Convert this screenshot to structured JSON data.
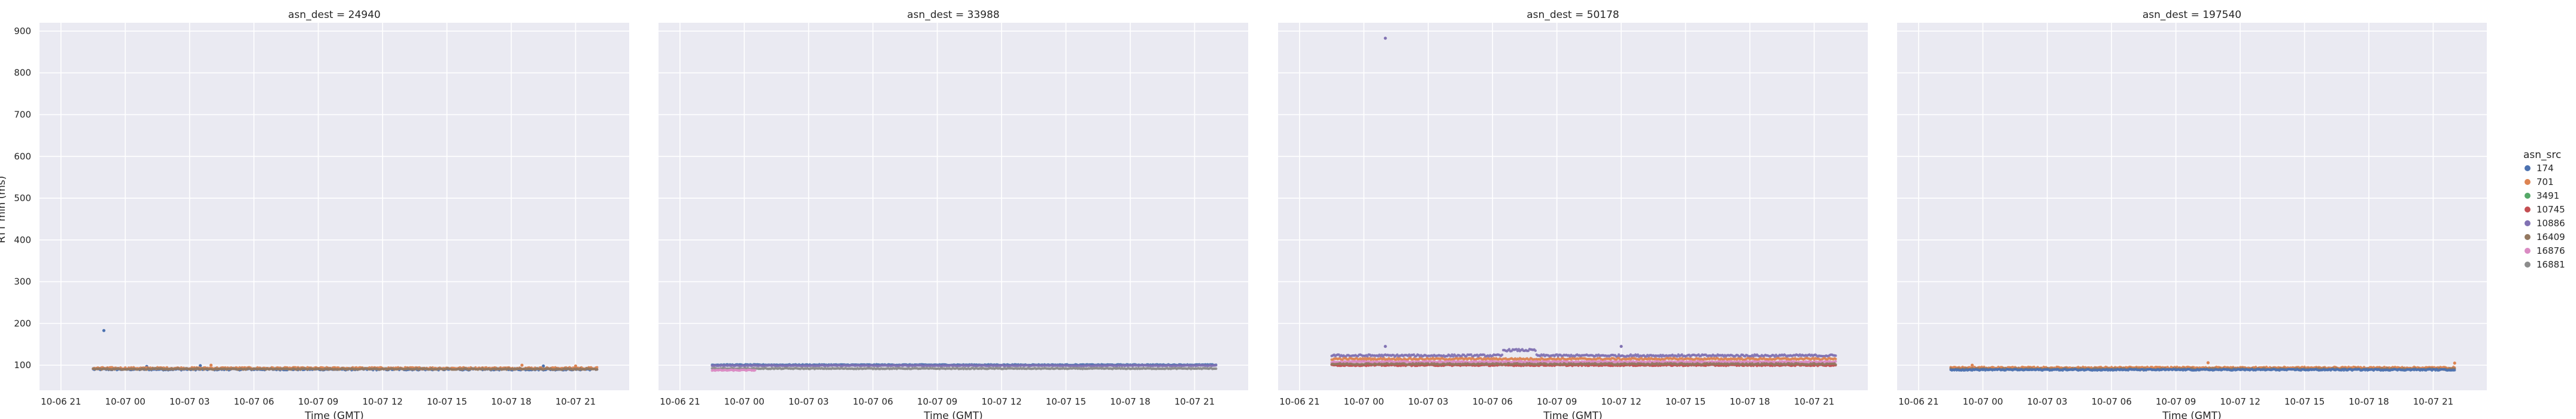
{
  "chart_data": {
    "type": "scatter",
    "xlabel": "Time (GMT)",
    "ylabel": "RTT min (ms)",
    "xlim": [
      "2020-10-06T20:00",
      "2020-10-07T23:30"
    ],
    "ylim": [
      40,
      920
    ],
    "x_ticks": [
      {
        "t": "2020-10-06T21:00",
        "label": "10-06 21"
      },
      {
        "t": "2020-10-07T00:00",
        "label": "10-07 00"
      },
      {
        "t": "2020-10-07T03:00",
        "label": "10-07 03"
      },
      {
        "t": "2020-10-07T06:00",
        "label": "10-07 06"
      },
      {
        "t": "2020-10-07T09:00",
        "label": "10-07 09"
      },
      {
        "t": "2020-10-07T12:00",
        "label": "10-07 12"
      },
      {
        "t": "2020-10-07T15:00",
        "label": "10-07 15"
      },
      {
        "t": "2020-10-07T18:00",
        "label": "10-07 18"
      },
      {
        "t": "2020-10-07T21:00",
        "label": "10-07 21"
      }
    ],
    "y_ticks": [
      100,
      200,
      300,
      400,
      500,
      600,
      700,
      800,
      900
    ],
    "grid": true,
    "legend": {
      "title": "asn_src",
      "position": "right",
      "entries": [
        {
          "name": "174",
          "color": "#4c72b0"
        },
        {
          "name": "701",
          "color": "#dd8452"
        },
        {
          "name": "3491",
          "color": "#55a868"
        },
        {
          "name": "10745",
          "color": "#c44e52"
        },
        {
          "name": "10886",
          "color": "#8172b3"
        },
        {
          "name": "16409",
          "color": "#937860"
        },
        {
          "name": "16876",
          "color": "#da8bc3"
        },
        {
          "name": "16881",
          "color": "#8c8c8c"
        }
      ]
    },
    "facets": [
      {
        "title": "asn_dest = 24940",
        "series": [
          {
            "name": "174",
            "start": "2020-10-06T22:30",
            "end": "2020-10-07T22:00",
            "base": 90,
            "noise": 2,
            "segments": [],
            "outliers": [
              [
                "2020-10-06T23:00",
                183
              ],
              [
                "2020-10-07T01:00",
                97
              ],
              [
                "2020-10-07T03:30",
                99
              ],
              [
                "2020-10-07T19:30",
                98
              ]
            ]
          },
          {
            "name": "701",
            "start": "2020-10-06T22:30",
            "end": "2020-10-07T22:00",
            "base": 93,
            "noise": 2,
            "segments": [],
            "outliers": [
              [
                "2020-10-07T04:00",
                100
              ],
              [
                "2020-10-07T18:30",
                100
              ],
              [
                "2020-10-07T21:00",
                98
              ]
            ]
          },
          {
            "name": "16409",
            "start": "2020-10-06T22:30",
            "end": "2020-10-07T22:00",
            "base": 91,
            "noise": 1.5,
            "segments": [],
            "outliers": []
          }
        ]
      },
      {
        "title": "asn_dest = 33988",
        "series": [
          {
            "name": "174",
            "start": "2020-10-06T22:30",
            "end": "2020-10-07T22:00",
            "base": 101,
            "noise": 1,
            "segments": [],
            "outliers": []
          },
          {
            "name": "10886",
            "start": "2020-10-06T22:30",
            "end": "2020-10-07T22:00",
            "base": 99,
            "noise": 1,
            "segments": [],
            "outliers": []
          },
          {
            "name": "16881",
            "start": "2020-10-06T22:30",
            "end": "2020-10-07T22:00",
            "base": 92,
            "noise": 1,
            "segments": [],
            "outliers": []
          },
          {
            "name": "16876",
            "start": "2020-10-06T22:30",
            "end": "2020-10-07T00:30",
            "base": 88,
            "noise": 1,
            "segments": [],
            "outliers": []
          }
        ]
      },
      {
        "title": "asn_dest = 50178",
        "series": [
          {
            "name": "10886",
            "start": "2020-10-06T22:30",
            "end": "2020-10-07T22:00",
            "base": 123,
            "noise": 2.5,
            "segments": [
              {
                "from": "2020-10-07T06:30",
                "to": "2020-10-07T08:00",
                "value": 136
              }
            ],
            "outliers": [
              [
                "2020-10-07T01:00",
                883
              ],
              [
                "2020-10-07T01:00",
                145
              ],
              [
                "2020-10-07T12:00",
                145
              ]
            ]
          },
          {
            "name": "701",
            "start": "2020-10-06T22:30",
            "end": "2020-10-07T22:00",
            "base": 115,
            "noise": 2,
            "segments": [],
            "outliers": []
          },
          {
            "name": "16876",
            "start": "2020-10-06T22:30",
            "end": "2020-10-07T22:00",
            "base": 108,
            "noise": 1.5,
            "segments": [],
            "outliers": []
          },
          {
            "name": "10745",
            "start": "2020-10-06T22:30",
            "end": "2020-10-07T22:00",
            "base": 100,
            "noise": 1.5,
            "segments": [],
            "outliers": []
          },
          {
            "name": "16409",
            "start": "2020-10-06T22:30",
            "end": "2020-10-07T22:00",
            "base": 103,
            "noise": 1.5,
            "segments": [],
            "outliers": []
          }
        ]
      },
      {
        "title": "asn_dest = 197540",
        "series": [
          {
            "name": "701",
            "start": "2020-10-06T22:30",
            "end": "2020-10-07T22:00",
            "base": 94,
            "noise": 2,
            "segments": [],
            "outliers": [
              [
                "2020-10-06T23:30",
                100
              ],
              [
                "2020-10-07T10:30",
                106
              ],
              [
                "2020-10-07T22:00",
                105
              ]
            ]
          },
          {
            "name": "16409",
            "start": "2020-10-06T22:30",
            "end": "2020-10-07T22:00",
            "base": 91,
            "noise": 1.5,
            "segments": [],
            "outliers": []
          },
          {
            "name": "174",
            "start": "2020-10-06T22:30",
            "end": "2020-10-07T22:00",
            "base": 89,
            "noise": 1.5,
            "segments": [],
            "outliers": []
          }
        ]
      }
    ]
  }
}
